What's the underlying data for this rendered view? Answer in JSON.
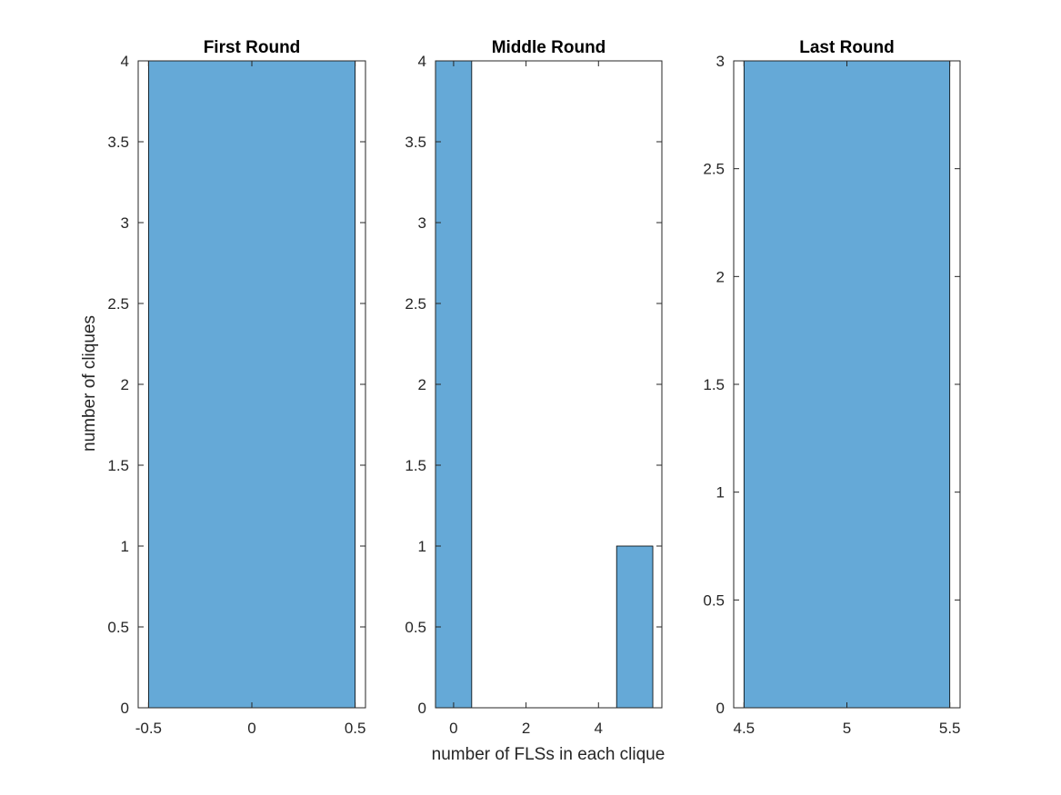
{
  "figure": {
    "shared_xlabel": "number of FLSs in each clique",
    "shared_ylabel": "number of cliques",
    "bar_color": "#65a9d7",
    "bar_edge_color": "#000000"
  },
  "chart_data": [
    {
      "type": "bar",
      "title": "First Round",
      "xlabel": "",
      "ylabel": "number of cliques",
      "xlim": [
        -0.55,
        0.55
      ],
      "ylim": [
        0,
        4
      ],
      "xticks": [
        -0.5,
        0,
        0.5
      ],
      "xtick_labels": [
        "-0.5",
        "0",
        "0.5"
      ],
      "yticks": [
        0,
        0.5,
        1,
        1.5,
        2,
        2.5,
        3,
        3.5,
        4
      ],
      "ytick_labels": [
        "0",
        "0.5",
        "1",
        "1.5",
        "2",
        "2.5",
        "3",
        "3.5",
        "4"
      ],
      "bars": [
        {
          "x0": -0.5,
          "x1": 0.5,
          "value": 4
        }
      ],
      "grid": false
    },
    {
      "type": "bar",
      "title": "Middle Round",
      "xlabel": "number of FLSs in each clique",
      "ylabel": "",
      "xlim": [
        -0.5,
        5.75
      ],
      "ylim": [
        0,
        4
      ],
      "xticks": [
        0,
        2,
        4
      ],
      "xtick_labels": [
        "0",
        "2",
        "4"
      ],
      "yticks": [
        0,
        0.5,
        1,
        1.5,
        2,
        2.5,
        3,
        3.5,
        4
      ],
      "ytick_labels": [
        "0",
        "0.5",
        "1",
        "1.5",
        "2",
        "2.5",
        "3",
        "3.5",
        "4"
      ],
      "bars": [
        {
          "x0": -0.5,
          "x1": 0.5,
          "value": 4
        },
        {
          "x0": 4.5,
          "x1": 5.5,
          "value": 1
        }
      ],
      "grid": false
    },
    {
      "type": "bar",
      "title": "Last Round",
      "xlabel": "",
      "ylabel": "",
      "xlim": [
        4.45,
        5.55
      ],
      "ylim": [
        0,
        3
      ],
      "xticks": [
        4.5,
        5,
        5.5
      ],
      "xtick_labels": [
        "4.5",
        "5",
        "5.5"
      ],
      "yticks": [
        0,
        0.5,
        1,
        1.5,
        2,
        2.5,
        3
      ],
      "ytick_labels": [
        "0",
        "0.5",
        "1",
        "1.5",
        "2",
        "2.5",
        "3"
      ],
      "bars": [
        {
          "x0": 4.5,
          "x1": 5.5,
          "value": 3
        }
      ],
      "grid": false
    }
  ]
}
